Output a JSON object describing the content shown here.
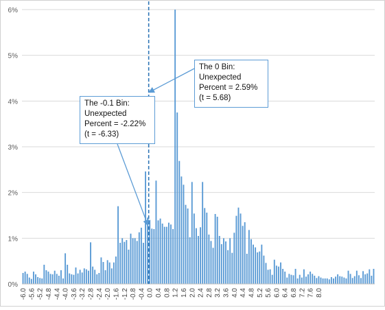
{
  "chart_data": {
    "type": "bar",
    "title": "",
    "xlabel": "",
    "ylabel": "",
    "ylim": [
      0,
      6
    ],
    "y_unit": "%",
    "y_ticks": [
      "0%",
      "1%",
      "2%",
      "3%",
      "4%",
      "5%",
      "6%"
    ],
    "x_ticks": [
      "-6.0",
      "-5.6",
      "-5.2",
      "-4.8",
      "-4.4",
      "-4.0",
      "-3.6",
      "-3.2",
      "-2.8",
      "-2.4",
      "-2.0",
      "-1.6",
      "-1.2",
      "-0.8",
      "-0.4",
      "0.0",
      "0.4",
      "0.8",
      "1.2",
      "1.6",
      "2.0",
      "2.4",
      "2.8",
      "3.2",
      "3.6",
      "4.0",
      "4.4",
      "4.8",
      "5.2",
      "5.6",
      "6.0",
      "6.4",
      "6.8",
      "7.2",
      "7.6",
      "8.0"
    ],
    "grid": true,
    "bar_color": "#5b9bd5",
    "x_start": -6.0,
    "x_step": 0.1,
    "values": [
      0.24,
      0.27,
      0.22,
      0.14,
      0.11,
      0.27,
      0.21,
      0.15,
      0.13,
      0.12,
      0.42,
      0.3,
      0.27,
      0.22,
      0.21,
      0.29,
      0.22,
      0.18,
      0.3,
      0.12,
      0.67,
      0.42,
      0.23,
      0.21,
      0.2,
      0.36,
      0.23,
      0.31,
      0.25,
      0.34,
      0.32,
      0.29,
      0.91,
      0.38,
      0.31,
      0.21,
      0.24,
      0.58,
      0.48,
      0.3,
      0.52,
      0.47,
      0.34,
      0.47,
      0.6,
      1.7,
      0.9,
      1.0,
      0.92,
      0.96,
      0.75,
      1.1,
      1.0,
      1.0,
      0.94,
      1.13,
      1.23,
      0.9,
      2.46,
      1.45,
      1.4,
      1.21,
      1.2,
      2.26,
      1.39,
      1.43,
      1.32,
      1.25,
      1.25,
      1.34,
      1.3,
      1.2,
      6.0,
      3.75,
      2.69,
      2.35,
      2.17,
      1.73,
      1.65,
      1.02,
      2.23,
      1.54,
      1.22,
      1.05,
      1.24,
      2.23,
      1.66,
      1.56,
      1.08,
      0.94,
      0.79,
      1.53,
      1.47,
      1.05,
      0.87,
      1.0,
      0.93,
      0.74,
      1.0,
      0.68,
      1.12,
      1.49,
      1.67,
      1.54,
      1.27,
      1.35,
      0.66,
      1.18,
      0.98,
      0.86,
      0.8,
      0.69,
      0.71,
      0.86,
      0.62,
      0.46,
      0.31,
      0.32,
      0.2,
      0.53,
      0.4,
      0.38,
      0.47,
      0.33,
      0.27,
      0.14,
      0.22,
      0.2,
      0.19,
      0.33,
      0.12,
      0.2,
      0.14,
      0.32,
      0.16,
      0.21,
      0.27,
      0.22,
      0.18,
      0.13,
      0.17,
      0.14,
      0.12,
      0.12,
      0.12,
      0.1,
      0.15,
      0.12,
      0.16,
      0.21,
      0.17,
      0.16,
      0.14,
      0.12,
      0.29,
      0.22,
      0.13,
      0.17,
      0.29,
      0.19,
      0.13,
      0.28,
      0.21,
      0.23,
      0.32,
      0.18,
      0.33
    ],
    "reference_line_x": 0.0,
    "annotations": [
      {
        "lines": [
          "The -0.1 Bin:",
          "Unexpected",
          "Percent = -2.22%",
          "(t = -6.33)"
        ],
        "target_x": -0.1
      },
      {
        "lines": [
          "The 0 Bin:",
          "Unexpected",
          "Percent = 2.59%",
          "(t = 5.68)"
        ],
        "target_x": 0.0
      }
    ]
  }
}
